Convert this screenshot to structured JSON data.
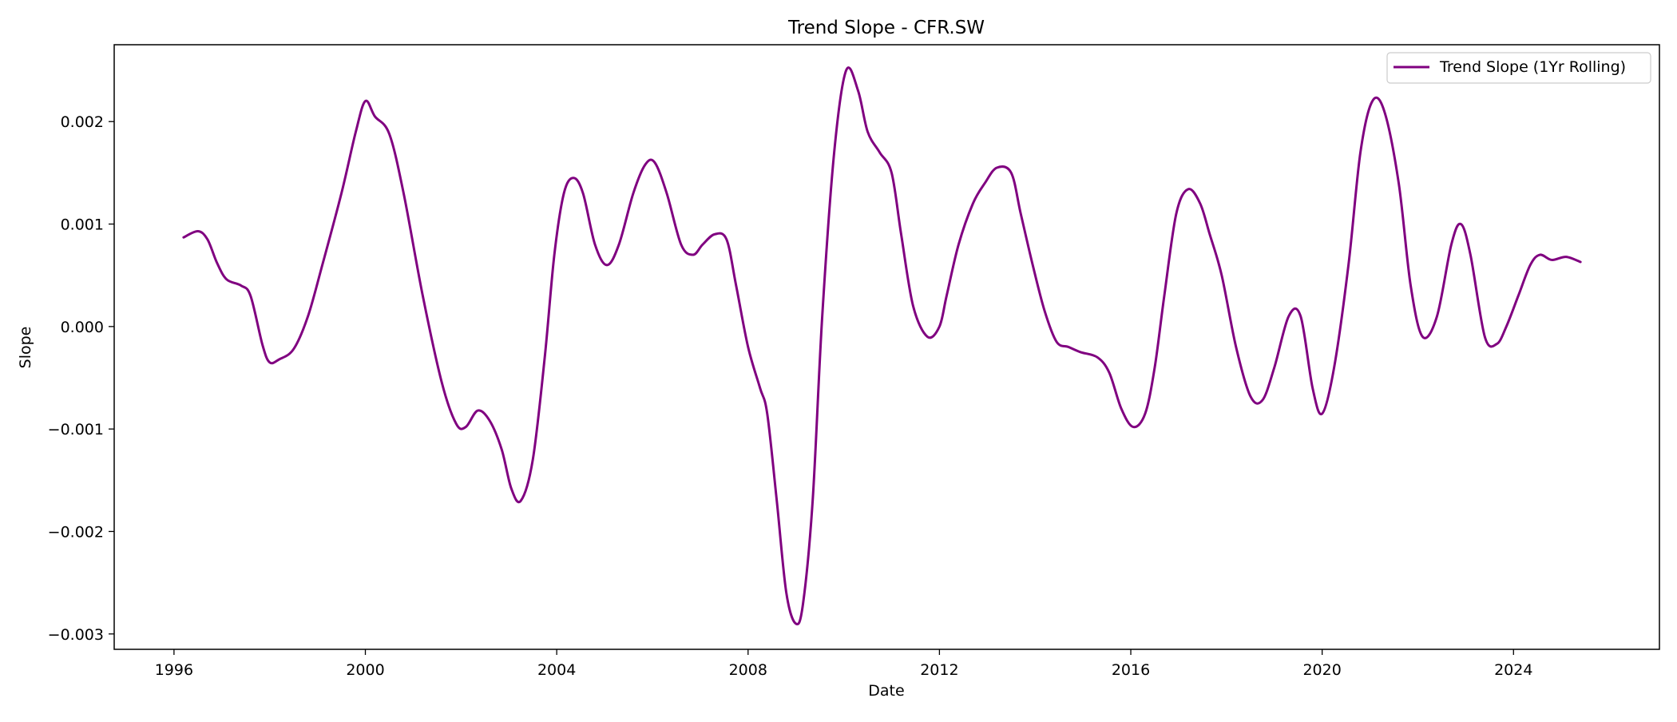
{
  "chart_data": {
    "type": "line",
    "title": "Trend Slope - CFR.SW",
    "xlabel": "Date",
    "ylabel": "Slope",
    "xlim": [
      1994.75,
      2027.05
    ],
    "ylim": [
      -0.00315,
      0.00275
    ],
    "x_ticks": [
      {
        "value": 1996,
        "label": "1996"
      },
      {
        "value": 2000,
        "label": "2000"
      },
      {
        "value": 2004,
        "label": "2004"
      },
      {
        "value": 2008,
        "label": "2008"
      },
      {
        "value": 2012,
        "label": "2012"
      },
      {
        "value": 2016,
        "label": "2016"
      },
      {
        "value": 2020,
        "label": "2020"
      },
      {
        "value": 2024,
        "label": "2024"
      }
    ],
    "y_ticks": [
      {
        "value": 0.002,
        "label": "0.002"
      },
      {
        "value": 0.001,
        "label": "0.001"
      },
      {
        "value": 0.0,
        "label": "0.000"
      },
      {
        "value": -0.001,
        "label": "−0.001"
      },
      {
        "value": -0.002,
        "label": "−0.002"
      },
      {
        "value": -0.003,
        "label": "−0.003"
      }
    ],
    "grid": false,
    "legend_position": "top-right",
    "series": [
      {
        "name": "Trend Slope (1Yr Rolling)",
        "color": "#800080",
        "x": [
          1996.2,
          1996.5,
          1996.7,
          1996.9,
          1997.1,
          1997.4,
          1997.6,
          1997.85,
          1998.0,
          1998.2,
          1998.5,
          1998.8,
          1999.1,
          1999.5,
          1999.8,
          2000.0,
          2000.2,
          2000.5,
          2000.8,
          2001.2,
          2001.6,
          2001.9,
          2002.1,
          2002.35,
          2002.6,
          2002.85,
          2003.05,
          2003.25,
          2003.5,
          2003.75,
          2003.95,
          2004.15,
          2004.35,
          2004.55,
          2004.8,
          2005.05,
          2005.3,
          2005.6,
          2005.85,
          2006.05,
          2006.3,
          2006.6,
          2006.85,
          2007.05,
          2007.3,
          2007.55,
          2007.75,
          2008.0,
          2008.25,
          2008.4,
          2008.6,
          2008.8,
          2009.0,
          2009.15,
          2009.35,
          2009.55,
          2009.8,
          2010.05,
          2010.3,
          2010.5,
          2010.75,
          2011.0,
          2011.2,
          2011.45,
          2011.75,
          2012.0,
          2012.15,
          2012.4,
          2012.7,
          2012.95,
          2013.2,
          2013.5,
          2013.7,
          2013.95,
          2014.2,
          2014.45,
          2014.7,
          2014.95,
          2015.3,
          2015.55,
          2015.8,
          2016.05,
          2016.3,
          2016.5,
          2016.7,
          2016.95,
          2017.2,
          2017.45,
          2017.65,
          2017.9,
          2018.2,
          2018.5,
          2018.75,
          2019.0,
          2019.3,
          2019.55,
          2019.8,
          2020.0,
          2020.25,
          2020.55,
          2020.8,
          2021.05,
          2021.3,
          2021.6,
          2021.85,
          2022.1,
          2022.4,
          2022.7,
          2022.9,
          2023.1,
          2023.4,
          2023.65,
          2023.85,
          2024.1,
          2024.35,
          2024.55,
          2024.8,
          2025.1,
          2025.4
        ],
        "y": [
          0.00087,
          0.00093,
          0.00085,
          0.00062,
          0.00046,
          0.0004,
          0.0003,
          -0.00018,
          -0.00035,
          -0.00032,
          -0.00022,
          0.0001,
          0.0006,
          0.0013,
          0.0019,
          0.0022,
          0.00205,
          0.00188,
          0.0013,
          0.0003,
          -0.00055,
          -0.00095,
          -0.00098,
          -0.00082,
          -0.00092,
          -0.0012,
          -0.00158,
          -0.0017,
          -0.0013,
          -0.0003,
          0.0007,
          0.0013,
          0.00145,
          0.0013,
          0.0008,
          0.0006,
          0.0008,
          0.0013,
          0.00158,
          0.0016,
          0.0013,
          0.0008,
          0.0007,
          0.0008,
          0.0009,
          0.00085,
          0.0004,
          -0.0002,
          -0.0006,
          -0.00085,
          -0.0017,
          -0.0026,
          -0.0029,
          -0.0027,
          -0.0017,
          0.0001,
          0.0017,
          0.0025,
          0.0023,
          0.0019,
          0.0017,
          0.0015,
          0.0009,
          0.0002,
          -0.0001,
          0.0,
          0.0003,
          0.0008,
          0.0012,
          0.0014,
          0.00155,
          0.0015,
          0.0011,
          0.0006,
          0.00015,
          -0.00015,
          -0.0002,
          -0.00025,
          -0.0003,
          -0.00045,
          -0.0008,
          -0.00098,
          -0.00085,
          -0.0004,
          0.0003,
          0.0011,
          0.00134,
          0.0012,
          0.0009,
          0.0005,
          -0.0002,
          -0.00068,
          -0.00072,
          -0.0004,
          0.0001,
          0.0001,
          -0.0006,
          -0.00085,
          -0.0004,
          0.0006,
          0.0017,
          0.0022,
          0.0021,
          0.0014,
          0.0004,
          -0.0001,
          0.0001,
          0.0008,
          0.001,
          0.0007,
          -0.0001,
          -0.00017,
          0.0,
          0.0003,
          0.0006,
          0.0007,
          0.00065,
          0.00068,
          0.00063
        ]
      }
    ]
  }
}
